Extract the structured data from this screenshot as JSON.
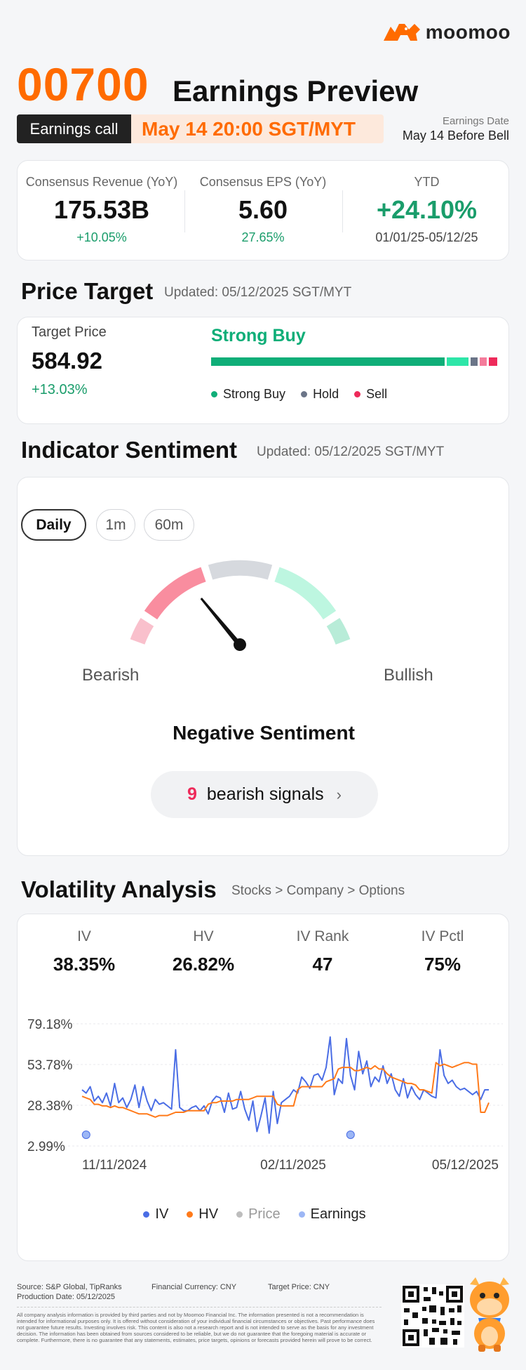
{
  "brand": {
    "name": "moomoo"
  },
  "header": {
    "ticker": "00700",
    "title": "Earnings Preview",
    "call_label": "Earnings call",
    "call_time": "May 14 20:00 SGT/MYT",
    "earnings_date_label": "Earnings Date",
    "earnings_date_value": "May 14 Before Bell"
  },
  "consensus": {
    "revenue": {
      "label": "Consensus Revenue (YoY)",
      "value": "175.53B",
      "change": "+10.05%"
    },
    "eps": {
      "label": "Consensus EPS (YoY)",
      "value": "5.60",
      "change": "27.65%"
    },
    "ytd": {
      "label": "YTD",
      "value": "+24.10%",
      "range": "01/01/25-05/12/25"
    }
  },
  "price_target": {
    "title": "Price Target",
    "updated": "Updated: 05/12/2025 SGT/MYT",
    "label": "Target Price",
    "value": "584.92",
    "change": "+13.03%",
    "rating": "Strong Buy",
    "distribution": [
      {
        "name": "Strong Buy",
        "share": 0.84,
        "color": "#0fae78"
      },
      {
        "name": "Buy",
        "share": 0.08,
        "color": "#2ee6a8"
      },
      {
        "name": "Hold",
        "share": 0.025,
        "color": "#6b7588"
      },
      {
        "name": "Underperform",
        "share": 0.025,
        "color": "#f47c9b"
      },
      {
        "name": "Sell",
        "share": 0.03,
        "color": "#ee2a5a"
      }
    ],
    "legend": [
      {
        "label": "Strong Buy",
        "color": "#0fae78"
      },
      {
        "label": "Hold",
        "color": "#6b7588"
      },
      {
        "label": "Sell",
        "color": "#ee2a5a"
      }
    ]
  },
  "sentiment": {
    "title": "Indicator Sentiment",
    "updated": "Updated: 05/12/2025 SGT/MYT",
    "tabs": [
      {
        "label": "Daily",
        "active": true
      },
      {
        "label": "1m",
        "active": false
      },
      {
        "label": "60m",
        "active": false
      }
    ],
    "bearish_label": "Bearish",
    "bullish_label": "Bullish",
    "needle_level": 0.28,
    "result": "Negative Sentiment",
    "signal_count": "9",
    "signal_text": "bearish signals",
    "chevron": "›"
  },
  "volatility": {
    "title": "Volatility Analysis",
    "breadcrumb": "Stocks > Company > Options",
    "metrics": [
      {
        "label": "IV",
        "value": "38.35%"
      },
      {
        "label": "HV",
        "value": "26.82%"
      },
      {
        "label": "IV Rank",
        "value": "47"
      },
      {
        "label": "IV Pctl",
        "value": "75%"
      }
    ],
    "legend": [
      {
        "label": "IV",
        "color": "#4a6de5"
      },
      {
        "label": "HV",
        "color": "#ff7a1a"
      },
      {
        "label": "Price",
        "color": "#bdbdbd"
      },
      {
        "label": "Earnings",
        "color": "#9cb6f5"
      }
    ]
  },
  "chart_data": {
    "type": "line",
    "y_tick_labels": [
      "79.18%",
      "53.78%",
      "28.38%",
      "2.99%"
    ],
    "ylim": [
      2.99,
      79.18
    ],
    "x_tick_labels": [
      "11/11/2024",
      "02/11/2025",
      "05/12/2025"
    ],
    "grid": true,
    "legend_position": "bottom",
    "series": [
      {
        "name": "IV",
        "color": "#4a6de5",
        "values": [
          38,
          36,
          40,
          31,
          34,
          30,
          36,
          28,
          42,
          30,
          33,
          27,
          32,
          41,
          27,
          40,
          31,
          25,
          32,
          29,
          30,
          28,
          26,
          63,
          27,
          25,
          25,
          27,
          28,
          25,
          28,
          23,
          31,
          34,
          33,
          24,
          36,
          26,
          27,
          37,
          26,
          19,
          31,
          12,
          22,
          33,
          11,
          37,
          17,
          30,
          32,
          34,
          38,
          36,
          46,
          43,
          39,
          47,
          48,
          44,
          52,
          71,
          35,
          45,
          42,
          70,
          47,
          38,
          62,
          48,
          56,
          40,
          46,
          43,
          53,
          42,
          48,
          38,
          34,
          45,
          33,
          40,
          35,
          32,
          38,
          36,
          34,
          33,
          63,
          47,
          42,
          44,
          40,
          38,
          39,
          37,
          35,
          37,
          32,
          38,
          38
        ]
      },
      {
        "name": "HV",
        "color": "#ff7a1a",
        "values": [
          34,
          33,
          32,
          29,
          29,
          28,
          28,
          27,
          28,
          27,
          27,
          26,
          25,
          24,
          23,
          23,
          23,
          22,
          21,
          22,
          22,
          22,
          23,
          24,
          24,
          24,
          25,
          25,
          25,
          25,
          25,
          29,
          30,
          30,
          31,
          31,
          31,
          31,
          32,
          32,
          32,
          32,
          33,
          34,
          34,
          34,
          34,
          34,
          29,
          28,
          28,
          28,
          28,
          38,
          40,
          40,
          40,
          40,
          40,
          40,
          43,
          44,
          45,
          51,
          52,
          52,
          52,
          50,
          50,
          51,
          52,
          51,
          53,
          51,
          51,
          48,
          46,
          45,
          44,
          43,
          42,
          42,
          41,
          38,
          38,
          37,
          36,
          55,
          53,
          54,
          53,
          52,
          53,
          54,
          55,
          55,
          54,
          54,
          24,
          24,
          30
        ]
      }
    ],
    "earnings_markers": [
      {
        "x_index": 1,
        "value": 10
      },
      {
        "x_index": 66,
        "value": 10
      }
    ]
  },
  "footer": {
    "source": "Source: S&P Global, TipRanks",
    "production_date": "Production Date: 05/12/2025",
    "currency": "Financial Currency: CNY",
    "target_price": "Target Price: CNY",
    "disclaimer": "All company analysis information is provided by third parties and not by Moomoo Financial Inc. The information presented is not a recommendation is intended for informational purposes only. It is offered without consideration of your individual financial circumstances or objectives. Past performance does not guarantee future results. Investing involves risk. This content is also not a research report and is not intended to serve as the basis for any investment decision. The information has been obtained from sources considered to be reliable, but we do not guarantee that the foregoing material is accurate or complete. Furthermore, there is no guarantee that any statements, estimates, price targets, opinions or forecasts provided herein will prove to be correct."
  }
}
